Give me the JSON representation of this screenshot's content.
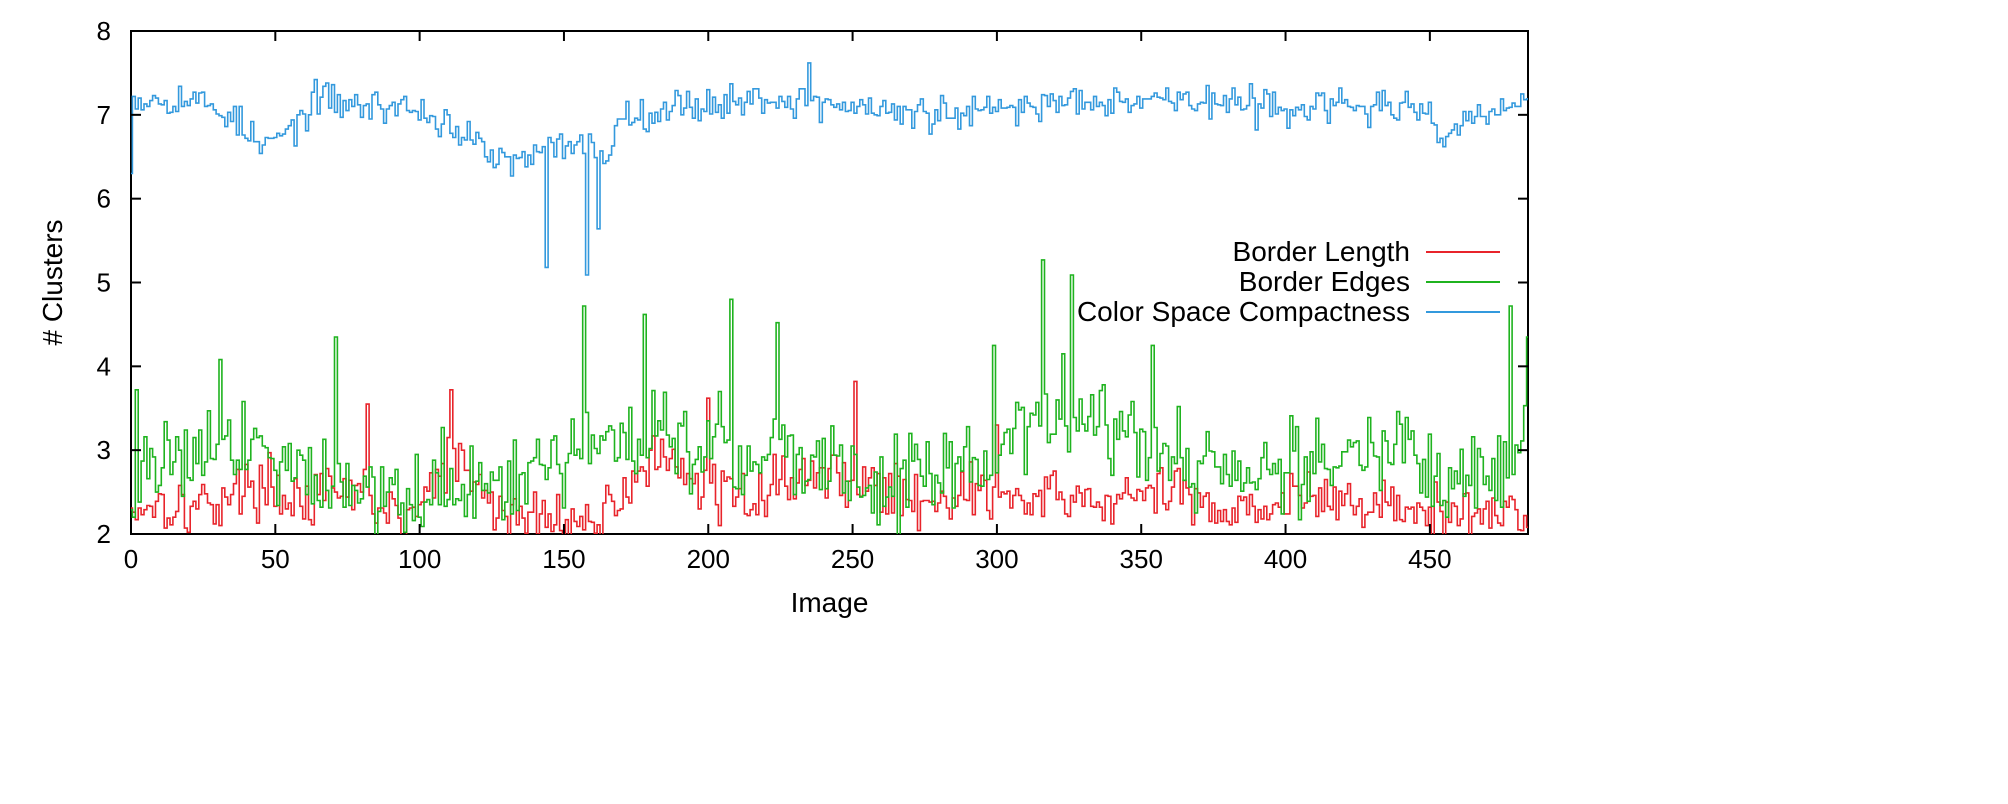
{
  "chart_data": {
    "type": "line",
    "step": true,
    "xlabel": "Image",
    "ylabel": "# Clusters",
    "xlim": [
      0,
      484
    ],
    "ylim": [
      2,
      8
    ],
    "xticks": [
      "0",
      "50",
      "100",
      "150",
      "200",
      "250",
      "300",
      "350",
      "400",
      "450"
    ],
    "yticks": [
      "2",
      "3",
      "4",
      "5",
      "6",
      "7",
      "8"
    ],
    "grid": false,
    "legend_position": "center-right",
    "n_points": 485,
    "series": [
      {
        "name": "Border Length",
        "color": "#e8242b",
        "anchors": [
          [
            0,
            2.3
          ],
          [
            10,
            2.4
          ],
          [
            20,
            2.3
          ],
          [
            30,
            2.4
          ],
          [
            45,
            2.6
          ],
          [
            60,
            2.4
          ],
          [
            80,
            2.5
          ],
          [
            95,
            2.1
          ],
          [
            111,
            2.9
          ],
          [
            130,
            2.2
          ],
          [
            145,
            2.2
          ],
          [
            160,
            2.1
          ],
          [
            180,
            2.9
          ],
          [
            195,
            2.6
          ],
          [
            210,
            2.4
          ],
          [
            230,
            2.7
          ],
          [
            250,
            2.7
          ],
          [
            270,
            2.4
          ],
          [
            290,
            2.5
          ],
          [
            305,
            2.4
          ],
          [
            330,
            2.4
          ],
          [
            345,
            2.4
          ],
          [
            360,
            2.5
          ],
          [
            380,
            2.3
          ],
          [
            400,
            2.4
          ],
          [
            420,
            2.4
          ],
          [
            440,
            2.3
          ],
          [
            460,
            2.2
          ],
          [
            484,
            2.3
          ]
        ],
        "noise": 0.45,
        "spikes": [
          [
            82,
            3.55
          ],
          [
            111,
            3.72
          ],
          [
            200,
            3.62
          ],
          [
            251,
            3.82
          ],
          [
            300,
            3.3
          ]
        ]
      },
      {
        "name": "Border Edges",
        "color": "#1fb31f",
        "anchors": [
          [
            0,
            2.6
          ],
          [
            15,
            3.0
          ],
          [
            30,
            3.1
          ],
          [
            45,
            3.1
          ],
          [
            60,
            2.7
          ],
          [
            80,
            2.6
          ],
          [
            100,
            2.4
          ],
          [
            115,
            2.6
          ],
          [
            130,
            2.4
          ],
          [
            145,
            2.8
          ],
          [
            160,
            3.1
          ],
          [
            180,
            3.3
          ],
          [
            200,
            3.0
          ],
          [
            220,
            3.0
          ],
          [
            240,
            2.8
          ],
          [
            260,
            2.6
          ],
          [
            280,
            2.7
          ],
          [
            300,
            3.0
          ],
          [
            320,
            3.6
          ],
          [
            340,
            3.2
          ],
          [
            360,
            3.0
          ],
          [
            380,
            2.7
          ],
          [
            400,
            2.8
          ],
          [
            420,
            2.9
          ],
          [
            440,
            3.0
          ],
          [
            460,
            2.5
          ],
          [
            484,
            3.0
          ]
        ],
        "noise": 0.75,
        "spikes": [
          [
            2,
            3.72
          ],
          [
            31,
            4.08
          ],
          [
            71,
            4.35
          ],
          [
            157,
            4.72
          ],
          [
            178,
            4.62
          ],
          [
            208,
            4.8
          ],
          [
            224,
            4.52
          ],
          [
            299,
            4.25
          ],
          [
            316,
            5.27
          ],
          [
            326,
            5.09
          ],
          [
            354,
            4.25
          ],
          [
            478,
            4.72
          ],
          [
            484,
            4.35
          ]
        ]
      },
      {
        "name": "Color Space Compactness",
        "color": "#3399dd",
        "anchors": [
          [
            0,
            7.2
          ],
          [
            20,
            7.2
          ],
          [
            35,
            7.0
          ],
          [
            45,
            6.6
          ],
          [
            55,
            6.8
          ],
          [
            65,
            7.2
          ],
          [
            80,
            7.1
          ],
          [
            95,
            7.1
          ],
          [
            110,
            6.9
          ],
          [
            125,
            6.5
          ],
          [
            135,
            6.4
          ],
          [
            145,
            6.6
          ],
          [
            155,
            6.7
          ],
          [
            165,
            6.5
          ],
          [
            170,
            7.0
          ],
          [
            190,
            7.1
          ],
          [
            220,
            7.2
          ],
          [
            250,
            7.1
          ],
          [
            270,
            7.0
          ],
          [
            290,
            7.0
          ],
          [
            310,
            7.1
          ],
          [
            330,
            7.2
          ],
          [
            360,
            7.2
          ],
          [
            390,
            7.1
          ],
          [
            420,
            7.1
          ],
          [
            440,
            7.1
          ],
          [
            455,
            6.8
          ],
          [
            470,
            7.0
          ],
          [
            484,
            7.2
          ]
        ],
        "noise": 0.28,
        "spikes": [
          [
            0,
            6.3
          ],
          [
            144,
            5.18
          ],
          [
            158,
            5.09
          ],
          [
            235,
            7.62
          ],
          [
            162,
            5.64
          ]
        ]
      }
    ]
  }
}
